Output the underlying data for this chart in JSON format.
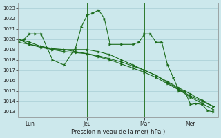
{
  "background_color": "#cce8ec",
  "grid_color": "#a8cdd4",
  "line_color": "#1a6b1a",
  "xlabel": "Pression niveau de la mer( hPa )",
  "ylim": [
    1012.5,
    1023.5
  ],
  "yticks": [
    1013,
    1014,
    1015,
    1016,
    1017,
    1018,
    1019,
    1020,
    1021,
    1022,
    1023
  ],
  "day_labels": [
    "Lun",
    "Jeu",
    "Mar",
    "Mer"
  ],
  "vline_x": [
    0.5,
    3.0,
    5.5,
    7.5
  ],
  "series": [
    {
      "x": [
        0.0,
        0.25,
        0.5,
        0.75,
        1.0,
        1.25,
        1.5,
        2.0,
        2.5,
        2.75,
        3.0,
        3.25,
        3.5,
        3.75,
        4.0,
        4.5,
        5.0,
        5.25,
        5.5,
        5.75,
        6.0,
        6.25,
        6.5,
        6.75,
        7.0,
        7.25,
        7.5,
        7.75,
        8.0,
        8.25,
        8.5
      ],
      "y": [
        1019.7,
        1020.0,
        1020.5,
        1020.5,
        1020.5,
        1019.2,
        1018.0,
        1017.5,
        1019.2,
        1021.2,
        1022.3,
        1022.5,
        1022.8,
        1022.0,
        1019.5,
        1019.5,
        1019.5,
        1019.7,
        1020.5,
        1020.5,
        1019.7,
        1019.7,
        1017.5,
        1016.3,
        1015.0,
        1015.0,
        1013.7,
        1013.8,
        1013.7,
        1013.1,
        1013.0
      ]
    },
    {
      "x": [
        0.0,
        0.5,
        1.0,
        1.5,
        2.0,
        2.5,
        3.0,
        3.5,
        4.0,
        4.5,
        5.0,
        5.5,
        6.0,
        6.5,
        7.0,
        7.5,
        8.0,
        8.5
      ],
      "y": [
        1020.0,
        1019.7,
        1019.3,
        1019.0,
        1019.0,
        1019.0,
        1019.0,
        1018.8,
        1018.5,
        1018.0,
        1017.5,
        1017.0,
        1016.5,
        1015.8,
        1015.2,
        1014.5,
        1014.0,
        1013.5
      ]
    },
    {
      "x": [
        0.0,
        0.5,
        1.0,
        1.5,
        2.0,
        2.5,
        3.0,
        3.5,
        4.0,
        4.5,
        5.0,
        5.5,
        6.0,
        6.5,
        7.0,
        7.5,
        8.0,
        8.5
      ],
      "y": [
        1020.0,
        1019.5,
        1019.2,
        1019.0,
        1018.8,
        1018.7,
        1018.6,
        1018.4,
        1018.1,
        1017.8,
        1017.4,
        1017.0,
        1016.5,
        1015.9,
        1015.3,
        1014.7,
        1014.1,
        1013.5
      ]
    },
    {
      "x": [
        0.0,
        0.5,
        1.0,
        1.5,
        2.0,
        2.5,
        3.0,
        3.5,
        4.0,
        4.5,
        5.0,
        5.5,
        6.0,
        6.5,
        7.0,
        7.5,
        8.0,
        8.5
      ],
      "y": [
        1019.7,
        1019.5,
        1019.3,
        1019.1,
        1019.0,
        1018.8,
        1018.6,
        1018.3,
        1018.0,
        1017.6,
        1017.2,
        1016.8,
        1016.3,
        1015.7,
        1015.1,
        1014.4,
        1013.8,
        1013.2
      ]
    }
  ],
  "xmin": 0.0,
  "xmax": 8.7
}
